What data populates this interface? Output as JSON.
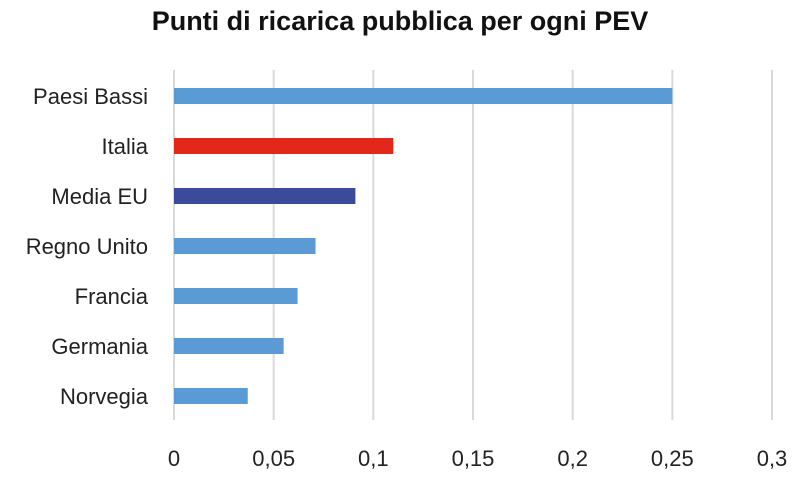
{
  "chart_data": {
    "type": "bar",
    "orientation": "horizontal",
    "title": "Punti di ricarica pubblica per ogni PEV",
    "xlabel": "",
    "ylabel": "",
    "categories": [
      "Paesi Bassi",
      "Italia",
      "Media EU",
      "Regno Unito",
      "Francia",
      "Germania",
      "Norvegia"
    ],
    "values": [
      0.25,
      0.11,
      0.091,
      0.071,
      0.062,
      0.055,
      0.037
    ],
    "bar_colors": [
      "#5b9bd5",
      "#e3271b",
      "#3b4a9b",
      "#5b9bd5",
      "#5b9bd5",
      "#5b9bd5",
      "#5b9bd5"
    ],
    "xlim": [
      0,
      0.3
    ],
    "xticks": [
      0,
      0.05,
      0.1,
      0.15,
      0.2,
      0.25,
      0.3
    ],
    "xtick_labels": [
      "0",
      "0,05",
      "0,1",
      "0,15",
      "0,2",
      "0,25",
      "0,3"
    ],
    "grid": "vertical",
    "legend": "none"
  }
}
